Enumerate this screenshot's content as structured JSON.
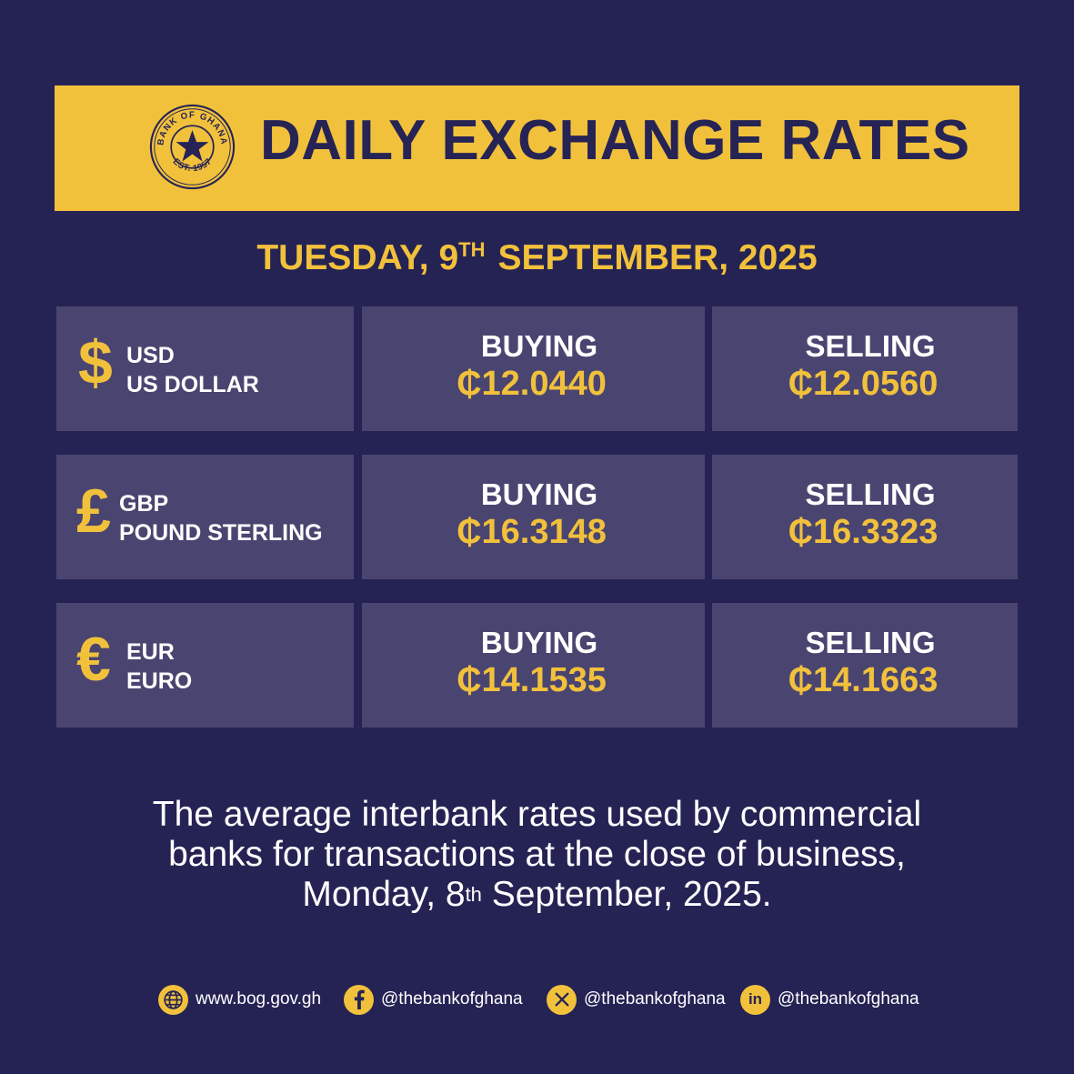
{
  "header": {
    "seal": {
      "top_text": "BANK OF GHANA",
      "bottom_text": "EST. 1957",
      "icon": "star-icon"
    },
    "title": "DAILY EXCHANGE RATES"
  },
  "date": {
    "weekday_day": "TUESDAY, 9",
    "suffix": "TH",
    "month_year": "SEPTEMBER, 2025"
  },
  "rates": [
    {
      "symbol": "$",
      "code": "USD",
      "name": "US DOLLAR",
      "buying_label": "BUYING",
      "buying": "₵12.0440",
      "selling_label": "SELLING",
      "selling": "₵12.0560"
    },
    {
      "symbol": "£",
      "code": "GBP",
      "name": "POUND STERLING",
      "buying_label": "BUYING",
      "buying": "₵16.3148",
      "selling_label": "SELLING",
      "selling": "₵16.3323"
    },
    {
      "symbol": "€",
      "code": "EUR",
      "name": "EURO",
      "buying_label": "BUYING",
      "buying": "₵14.1535",
      "selling_label": "SELLING",
      "selling": "₵14.1663"
    }
  ],
  "note": {
    "line1": "The average interbank rates used by commercial",
    "line2": "banks for transactions at the close of business,",
    "line3_pre": "Monday, 8",
    "line3_sup": "th",
    "line3_post": " September, 2025."
  },
  "footer": {
    "website": {
      "icon": "globe-icon",
      "text": "www.bog.gov.gh"
    },
    "facebook": {
      "icon": "facebook-icon",
      "text": "@thebankofghana"
    },
    "x": {
      "icon": "x-icon",
      "text": "@thebankofghana"
    },
    "linkedin": {
      "icon": "linkedin-icon",
      "text": "@thebankofghana"
    }
  },
  "colors": {
    "background": "#252354",
    "accent": "#f2c13c",
    "cell": "#4a4570",
    "text": "#ffffff"
  }
}
